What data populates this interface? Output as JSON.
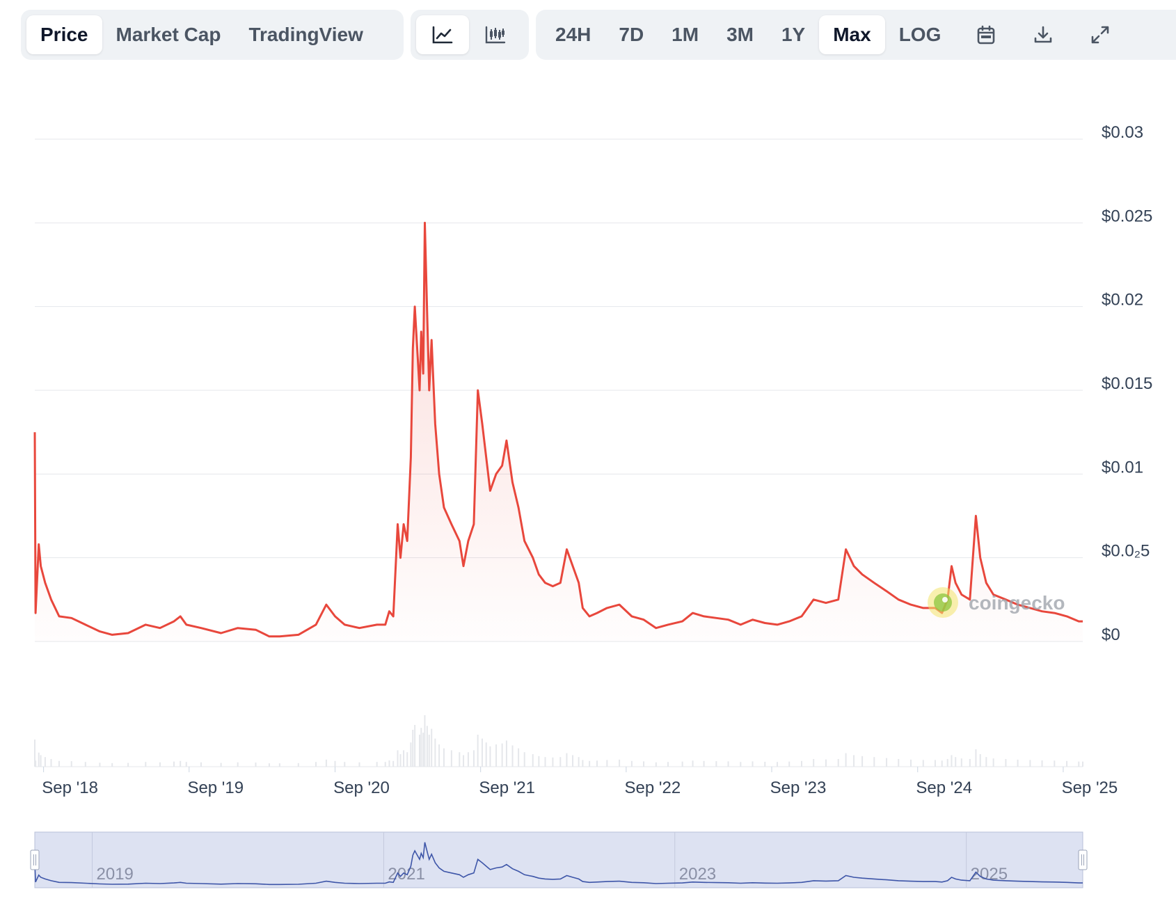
{
  "toolbar": {
    "type_tabs": [
      "Price",
      "Market Cap",
      "TradingView"
    ],
    "active_type": "Price",
    "style_icons": [
      "line-chart-icon",
      "candlestick-chart-icon"
    ],
    "active_style": "line-chart-icon",
    "ranges": [
      "24H",
      "7D",
      "1M",
      "3M",
      "1Y",
      "Max",
      "LOG"
    ],
    "active_range": "Max",
    "tool_icons": [
      "calendar-icon",
      "download-icon",
      "fullscreen-icon"
    ]
  },
  "watermark": "coingecko",
  "colors": {
    "price_line": "#e8473c",
    "navigator_line": "#3d55a8",
    "navigator_bg": "#dde2f2",
    "grid": "#e5e7eb"
  },
  "chart_data": {
    "type": "line",
    "title": "",
    "xlabel": "",
    "ylabel": "",
    "ylim": [
      0,
      0.03
    ],
    "y_tick_values": [
      0,
      0.005,
      0.01,
      0.015,
      0.02,
      0.025,
      0.03
    ],
    "y_tick_labels": [
      "$0",
      "$0.0₂5",
      "$0.01",
      "$0.015",
      "$0.02",
      "$0.025",
      "$0.03"
    ],
    "x_tick_labels": [
      "Sep '18",
      "Sep '19",
      "Sep '20",
      "Sep '21",
      "Sep '22",
      "Sep '23",
      "Sep '24",
      "Sep '25"
    ],
    "x_tick_dates": [
      "2018-09-01",
      "2019-09-01",
      "2020-09-01",
      "2021-09-01",
      "2022-09-01",
      "2023-09-01",
      "2024-09-01",
      "2025-09-01"
    ],
    "xlim": [
      "2018-08-10",
      "2025-10-20"
    ],
    "grid": true,
    "series": [
      {
        "points": [
          [
            "2018-08-10",
            0.0125
          ],
          [
            "2018-08-12",
            0.0017
          ],
          [
            "2018-08-20",
            0.0058
          ],
          [
            "2018-08-25",
            0.0045
          ],
          [
            "2018-09-05",
            0.0035
          ],
          [
            "2018-09-20",
            0.0025
          ],
          [
            "2018-10-10",
            0.0015
          ],
          [
            "2018-11-10",
            0.0014
          ],
          [
            "2018-12-15",
            0.001
          ],
          [
            "2019-01-20",
            0.0006
          ],
          [
            "2019-02-20",
            0.0004
          ],
          [
            "2019-04-01",
            0.0005
          ],
          [
            "2019-05-15",
            0.001
          ],
          [
            "2019-06-20",
            0.0008
          ],
          [
            "2019-07-25",
            0.0012
          ],
          [
            "2019-08-10",
            0.0015
          ],
          [
            "2019-08-25",
            0.001
          ],
          [
            "2019-10-01",
            0.0008
          ],
          [
            "2019-11-20",
            0.0005
          ],
          [
            "2020-01-01",
            0.0008
          ],
          [
            "2020-02-15",
            0.0007
          ],
          [
            "2020-03-20",
            0.0003
          ],
          [
            "2020-04-15",
            0.0003
          ],
          [
            "2020-06-01",
            0.0004
          ],
          [
            "2020-07-15",
            0.001
          ],
          [
            "2020-08-10",
            0.0022
          ],
          [
            "2020-09-01",
            0.0015
          ],
          [
            "2020-09-25",
            0.001
          ],
          [
            "2020-11-01",
            0.0008
          ],
          [
            "2020-12-15",
            0.001
          ],
          [
            "2021-01-05",
            0.001
          ],
          [
            "2021-01-15",
            0.0018
          ],
          [
            "2021-01-25",
            0.0015
          ],
          [
            "2021-02-05",
            0.007
          ],
          [
            "2021-02-12",
            0.005
          ],
          [
            "2021-02-20",
            0.007
          ],
          [
            "2021-03-01",
            0.006
          ],
          [
            "2021-03-10",
            0.011
          ],
          [
            "2021-03-15",
            0.0175
          ],
          [
            "2021-03-20",
            0.02
          ],
          [
            "2021-04-01",
            0.015
          ],
          [
            "2021-04-05",
            0.0185
          ],
          [
            "2021-04-10",
            0.016
          ],
          [
            "2021-04-14",
            0.025
          ],
          [
            "2021-04-20",
            0.0195
          ],
          [
            "2021-04-25",
            0.015
          ],
          [
            "2021-05-01",
            0.018
          ],
          [
            "2021-05-10",
            0.013
          ],
          [
            "2021-05-20",
            0.01
          ],
          [
            "2021-06-01",
            0.008
          ],
          [
            "2021-06-20",
            0.007
          ],
          [
            "2021-07-10",
            0.006
          ],
          [
            "2021-07-20",
            0.0045
          ],
          [
            "2021-08-01",
            0.006
          ],
          [
            "2021-08-15",
            0.007
          ],
          [
            "2021-08-25",
            0.015
          ],
          [
            "2021-09-05",
            0.013
          ],
          [
            "2021-09-15",
            0.011
          ],
          [
            "2021-09-25",
            0.009
          ],
          [
            "2021-10-10",
            0.01
          ],
          [
            "2021-10-25",
            0.0105
          ],
          [
            "2021-11-05",
            0.012
          ],
          [
            "2021-11-20",
            0.0095
          ],
          [
            "2021-12-05",
            0.008
          ],
          [
            "2021-12-20",
            0.006
          ],
          [
            "2022-01-10",
            0.005
          ],
          [
            "2022-01-25",
            0.004
          ],
          [
            "2022-02-10",
            0.0035
          ],
          [
            "2022-03-01",
            0.0033
          ],
          [
            "2022-03-20",
            0.0035
          ],
          [
            "2022-04-05",
            0.0055
          ],
          [
            "2022-04-20",
            0.0045
          ],
          [
            "2022-05-05",
            0.0035
          ],
          [
            "2022-05-15",
            0.002
          ],
          [
            "2022-06-01",
            0.0015
          ],
          [
            "2022-06-20",
            0.0017
          ],
          [
            "2022-07-15",
            0.002
          ],
          [
            "2022-08-15",
            0.0022
          ],
          [
            "2022-09-15",
            0.0015
          ],
          [
            "2022-10-15",
            0.0013
          ],
          [
            "2022-11-15",
            0.0008
          ],
          [
            "2022-12-15",
            0.001
          ],
          [
            "2023-01-20",
            0.0012
          ],
          [
            "2023-02-15",
            0.0017
          ],
          [
            "2023-03-15",
            0.0015
          ],
          [
            "2023-04-15",
            0.0014
          ],
          [
            "2023-05-15",
            0.0013
          ],
          [
            "2023-06-15",
            0.001
          ],
          [
            "2023-07-15",
            0.0013
          ],
          [
            "2023-08-15",
            0.0011
          ],
          [
            "2023-09-15",
            0.001
          ],
          [
            "2023-10-15",
            0.0012
          ],
          [
            "2023-11-15",
            0.0015
          ],
          [
            "2023-12-15",
            0.0025
          ],
          [
            "2024-01-15",
            0.0023
          ],
          [
            "2024-02-15",
            0.0025
          ],
          [
            "2024-03-05",
            0.0055
          ],
          [
            "2024-03-25",
            0.0045
          ],
          [
            "2024-04-15",
            0.004
          ],
          [
            "2024-05-15",
            0.0035
          ],
          [
            "2024-06-15",
            0.003
          ],
          [
            "2024-07-15",
            0.0025
          ],
          [
            "2024-08-15",
            0.0022
          ],
          [
            "2024-09-15",
            0.002
          ],
          [
            "2024-10-15",
            0.002
          ],
          [
            "2024-11-01",
            0.0017
          ],
          [
            "2024-11-15",
            0.0025
          ],
          [
            "2024-11-25",
            0.0045
          ],
          [
            "2024-12-05",
            0.0035
          ],
          [
            "2024-12-20",
            0.0028
          ],
          [
            "2025-01-10",
            0.0025
          ],
          [
            "2025-01-25",
            0.0075
          ],
          [
            "2025-02-05",
            0.005
          ],
          [
            "2025-02-20",
            0.0035
          ],
          [
            "2025-03-10",
            0.0028
          ],
          [
            "2025-04-10",
            0.0025
          ],
          [
            "2025-05-10",
            0.0022
          ],
          [
            "2025-06-10",
            0.002
          ],
          [
            "2025-07-10",
            0.0018
          ],
          [
            "2025-08-10",
            0.0017
          ],
          [
            "2025-09-10",
            0.0015
          ],
          [
            "2025-10-10",
            0.0012
          ],
          [
            "2025-10-20",
            0.0012
          ]
        ]
      }
    ],
    "navigator": {
      "labels": [
        "2019",
        "2021",
        "2023",
        "2025"
      ],
      "label_dates": [
        "2019-01-01",
        "2021-01-01",
        "2023-01-01",
        "2025-01-01"
      ]
    }
  }
}
